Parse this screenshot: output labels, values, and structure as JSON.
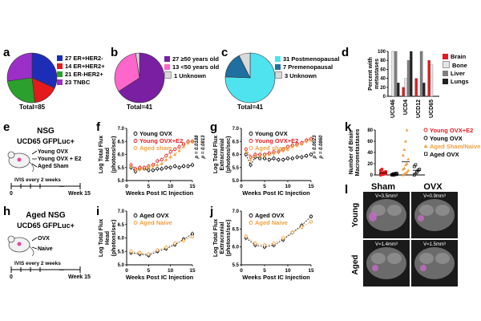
{
  "panel_a": {
    "label": "a",
    "legend": [
      "27 ER+HER2-",
      "14 ER+HER2+",
      "21 ER-HER2+",
      "23 TNBC"
    ],
    "values": [
      27,
      14,
      21,
      23
    ],
    "colors": [
      "#1e2db8",
      "#e41a1c",
      "#2ca02c",
      "#9b2fc8"
    ],
    "total": "Total=85"
  },
  "panel_b": {
    "label": "b",
    "legend": [
      "27 ≥50 years old",
      "13 <50 years old",
      "1 Unknown"
    ],
    "values": [
      27,
      13,
      1
    ],
    "colors": [
      "#7a1fa2",
      "#ff66cc",
      "#d9d9d9"
    ],
    "total": "Total=41"
  },
  "panel_c": {
    "label": "c",
    "legend": [
      "31 Postmenopausal",
      "7 Premenopausal",
      "3 Unknown"
    ],
    "values": [
      31,
      7,
      3
    ],
    "colors": [
      "#4fe3f0",
      "#1f6fa0",
      "#d9d9d9"
    ],
    "total": "Total=41"
  },
  "panel_d": {
    "label": "d",
    "ylabel": "Percent with metastases",
    "yticks": [
      "0",
      "20",
      "40",
      "60",
      "80",
      "100"
    ],
    "categories": [
      "UCD46",
      "UCD4",
      "UCD12",
      "UCD65"
    ],
    "series": [
      {
        "name": "Brain",
        "color": "#e41a1c",
        "values": [
          0,
          20,
          40,
          80
        ]
      },
      {
        "name": "Bone",
        "color": "#e6e6e6",
        "values": [
          100,
          40,
          0,
          70
        ]
      },
      {
        "name": "Liver",
        "color": "#7f7f7f",
        "values": [
          100,
          80,
          100,
          0
        ]
      },
      {
        "name": "Lungs",
        "color": "#222222",
        "values": [
          30,
          100,
          30,
          0
        ]
      }
    ]
  },
  "panel_e": {
    "label": "e",
    "title1": "NSG",
    "title2": "UCD65 GFPLuc+",
    "groups": [
      "Young OVX",
      "Young OVX + E2",
      "Aged Sham"
    ],
    "schedule": "IVIS every 2 weeks",
    "t0": "0",
    "tend": "Week 15"
  },
  "panel_h": {
    "label": "h",
    "title1": "Aged NSG",
    "title2": "UCD65 GFPLuc+",
    "groups": [
      "OVX",
      "Naive"
    ],
    "schedule": "IVIS every 2 weeks",
    "t0": "0",
    "tend": "Week 15"
  },
  "panel_f": {
    "label": "f",
    "ylabel1": "Log Total Flux",
    "ylabel2": "Head",
    "ylabel3": "(photons/sec)",
    "xlabel": "Weeks Post IC Injection",
    "yticks": [
      "5.0",
      "5.5",
      "6.0",
      "6.5",
      "7.0"
    ],
    "xticks": [
      "0",
      "5",
      "10",
      "15"
    ],
    "legend": [
      "Young OVX",
      "Young OVX+E2",
      "Aged sham"
    ],
    "pvals": [
      "p = 0.0188",
      "p = 0.0813"
    ],
    "series": [
      {
        "name": "Young OVX",
        "color": "#000000",
        "x": [
          1,
          2,
          3,
          4,
          5,
          6,
          7,
          8,
          9,
          10,
          11,
          12,
          13,
          14,
          15
        ],
        "y": [
          5.5,
          5.35,
          5.45,
          5.45,
          5.4,
          5.4,
          5.45,
          5.45,
          5.5,
          5.5,
          5.55,
          5.5,
          5.55,
          5.55,
          5.6
        ]
      },
      {
        "name": "Young OVX+E2",
        "color": "#e41a1c",
        "x": [
          1,
          2,
          3,
          4,
          5,
          6,
          7,
          8,
          9,
          10,
          11,
          12,
          13,
          14,
          15
        ],
        "y": [
          5.6,
          5.45,
          5.5,
          5.5,
          5.55,
          5.6,
          5.75,
          5.8,
          5.95,
          6.1,
          6.2,
          6.3,
          6.4,
          6.5,
          6.5
        ]
      },
      {
        "name": "Aged sham",
        "color": "#f0a040",
        "x": [
          1,
          2,
          3,
          4,
          5,
          6,
          7,
          8,
          9,
          10,
          11,
          12,
          13,
          14,
          15
        ],
        "y": [
          5.55,
          5.4,
          5.45,
          5.45,
          5.5,
          5.55,
          5.6,
          5.65,
          5.8,
          5.9,
          6.0,
          6.15,
          6.3,
          6.45,
          6.5
        ]
      }
    ]
  },
  "panel_g": {
    "label": "g",
    "ylabel1": "Log Total Flux",
    "ylabel2": "Extracranial",
    "ylabel3": "(photons/sec)",
    "xlabel": "Weeks Post IC Injection",
    "yticks": [
      "5.0",
      "5.5",
      "6.0",
      "6.5",
      "7.0"
    ],
    "xticks": [
      "0",
      "5",
      "10",
      "15"
    ],
    "legend": [
      "Young OVX",
      "Young OVX+E2",
      "Aged sham"
    ],
    "pvals": [
      "p = 0.0023",
      "p = 0.0860"
    ],
    "series": [
      {
        "name": "Young OVX",
        "color": "#000000",
        "x": [
          1,
          2,
          3,
          4,
          5,
          6,
          7,
          8,
          9,
          10,
          11,
          12,
          13,
          14,
          15
        ],
        "y": [
          6.0,
          5.6,
          5.9,
          5.85,
          5.85,
          5.8,
          5.85,
          5.8,
          5.8,
          5.85,
          5.85,
          5.9,
          5.9,
          5.95,
          6.0
        ]
      },
      {
        "name": "Young OVX+E2",
        "color": "#e41a1c",
        "x": [
          1,
          2,
          3,
          4,
          5,
          6,
          7,
          8,
          9,
          10,
          11,
          12,
          13,
          14,
          15
        ],
        "y": [
          6.2,
          5.9,
          6.0,
          6.0,
          6.0,
          6.05,
          6.1,
          6.1,
          6.2,
          6.3,
          6.35,
          6.4,
          6.45,
          6.55,
          6.6
        ]
      },
      {
        "name": "Aged sham",
        "color": "#f0a040",
        "x": [
          1,
          2,
          3,
          4,
          5,
          6,
          7,
          8,
          9,
          10,
          11,
          12,
          13,
          14,
          15
        ],
        "y": [
          6.1,
          5.8,
          5.95,
          5.95,
          5.95,
          6.0,
          6.05,
          6.1,
          6.15,
          6.2,
          6.3,
          6.35,
          6.4,
          6.5,
          6.55
        ]
      }
    ]
  },
  "panel_i": {
    "label": "i",
    "ylabel1": "Log Total Flux",
    "ylabel2": "Head",
    "ylabel3": "(photons/sec)",
    "xlabel": "Weeks Post IC Injection",
    "yticks": [
      "5.0",
      "5.5",
      "6.0",
      "6.5",
      "7.0"
    ],
    "xticks": [
      "0",
      "5",
      "10",
      "15"
    ],
    "legend": [
      "Aged OVX",
      "Aged Naive"
    ],
    "series": [
      {
        "name": "Aged OVX",
        "color": "#000000",
        "x": [
          1,
          3,
          5,
          7,
          9,
          11,
          13,
          15
        ],
        "y": [
          5.45,
          5.4,
          5.35,
          5.5,
          5.6,
          5.75,
          5.95,
          6.15
        ]
      },
      {
        "name": "Aged Naive",
        "color": "#f0a040",
        "x": [
          1,
          3,
          5,
          7,
          9,
          11,
          13,
          15
        ],
        "y": [
          5.5,
          5.45,
          5.4,
          5.55,
          5.65,
          5.8,
          5.9,
          6.05
        ]
      }
    ]
  },
  "panel_j": {
    "label": "j",
    "ylabel1": "Log Total Flux",
    "ylabel2": "Extracranial",
    "ylabel3": "(photons/sec)",
    "xlabel": "Weeks Post IC Injection",
    "yticks": [
      "5.5",
      "6.0",
      "6.5",
      "7.0"
    ],
    "xticks": [
      "0",
      "5",
      "10",
      "15"
    ],
    "legend": [
      "Aged OVX",
      "Aged Naive"
    ],
    "series": [
      {
        "name": "Aged OVX",
        "color": "#000000",
        "x": [
          1,
          3,
          5,
          7,
          9,
          11,
          13,
          15
        ],
        "y": [
          6.25,
          6.05,
          6.0,
          6.05,
          6.2,
          6.4,
          6.6,
          6.85
        ]
      },
      {
        "name": "Aged Naive",
        "color": "#f0a040",
        "x": [
          1,
          3,
          5,
          7,
          9,
          11,
          13,
          15
        ],
        "y": [
          6.3,
          6.1,
          6.05,
          6.1,
          6.25,
          6.4,
          6.55,
          6.7
        ]
      }
    ]
  },
  "panel_k": {
    "label": "k",
    "ylabel": "Number of Brain Macrometastases",
    "yticks": [
      "0",
      "20",
      "40",
      "60",
      "80"
    ],
    "legend": [
      "Young OVX+E2",
      "Young OVX",
      "Aged Sham/Naive",
      "Aged OVX"
    ],
    "colors": [
      "#e41a1c",
      "#000000",
      "#f0a040",
      "#000000"
    ],
    "group_values": [
      [
        0,
        1,
        1,
        2,
        2,
        3,
        3,
        4,
        5,
        6,
        8,
        10
      ],
      [
        0,
        0,
        0,
        1,
        1,
        1,
        2,
        2,
        3,
        3
      ],
      [
        0,
        2,
        3,
        5,
        8,
        10,
        12,
        18,
        20,
        28,
        35,
        45,
        60,
        80
      ],
      [
        0,
        2,
        5,
        8,
        10,
        15,
        18
      ]
    ]
  },
  "panel_l": {
    "label": "l",
    "col1": "Sham",
    "col2": "OVX",
    "row1": "Young",
    "row2": "Aged",
    "vols": [
      "V=3.5mm³",
      "V=0.9mm³",
      "V=1.4mm³",
      "V=1.5mm³"
    ]
  }
}
